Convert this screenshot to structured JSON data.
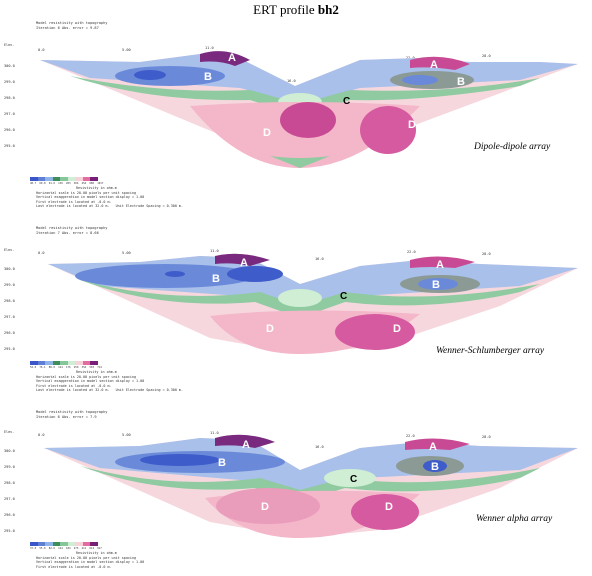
{
  "figure": {
    "title_prefix": "ERT profile ",
    "title_bold": "bh2"
  },
  "common": {
    "header_line1": "Model resistivity with topography",
    "legend_caption": "Resistivity in ohm.m",
    "scale_note": "Horizontal scale is 20.00 pixels per unit spacing",
    "vert_note": "Vertical exaggeration in model section display = 1.00",
    "first_electrode": "First electrode is located at -0.0 m.",
    "last_electrode": "Last electrode is located at 32.0 m.",
    "spacing_note": "Unit Electrode Spacing = 0.300 m.",
    "elev_label": "Elev.",
    "top_ticks": [
      "0.0",
      "5.00",
      "11.0",
      "16.0",
      "22.0",
      "28.0"
    ],
    "elev_ticks": [
      "301.0",
      "300.0",
      "299.0",
      "298.0",
      "297.0",
      "296.0",
      "295.0"
    ],
    "zones": {
      "A": "A",
      "B": "B",
      "C": "C",
      "D": "D"
    }
  },
  "panels": [
    {
      "id": "dipole",
      "iteration": "Iteration 6 Abs. error = 9.87",
      "array_label": "Dipole-dipole array",
      "legend_values": [
        "40.7",
        "60.8",
        "91.0",
        "136",
        "203",
        "304",
        "454",
        "680",
        "1017"
      ]
    },
    {
      "id": "wenner_schlumberger",
      "iteration": "Iteration 7 Abs. error = 8.66",
      "array_label": "Wenner-Schlumberger array",
      "legend_values": [
        "52.0",
        "76.1",
        "88.0",
        "124",
        "176",
        "250",
        "354",
        "503",
        "714"
      ]
    },
    {
      "id": "wenner_alpha",
      "iteration": "Iteration 6 Abs. error = 7.9",
      "array_label": "Wenner alpha array",
      "legend_values": [
        "37.0",
        "55.0",
        "82.6",
        "124",
        "184",
        "275",
        "411",
        "614",
        "917"
      ]
    }
  ],
  "colors": {
    "legend": [
      "#3b56c9",
      "#5f7fd6",
      "#8fb4e6",
      "#3d8e5a",
      "#86c79a",
      "#cfeed3",
      "#f7d2da",
      "#e36d9e",
      "#7a1f79"
    ],
    "blue_dark": "#3f5ccb",
    "blue_mid": "#6a8ad9",
    "blue_light": "#a9c0ea",
    "green_dark": "#4f8f6a",
    "green_mid": "#8fcaa0",
    "green_light": "#d6efd6",
    "pink_light": "#f6d7de",
    "pink_mid": "#ea9cbb",
    "magenta": "#c94a94",
    "purple": "#7a2a7e",
    "grey": "#8c9a96"
  }
}
